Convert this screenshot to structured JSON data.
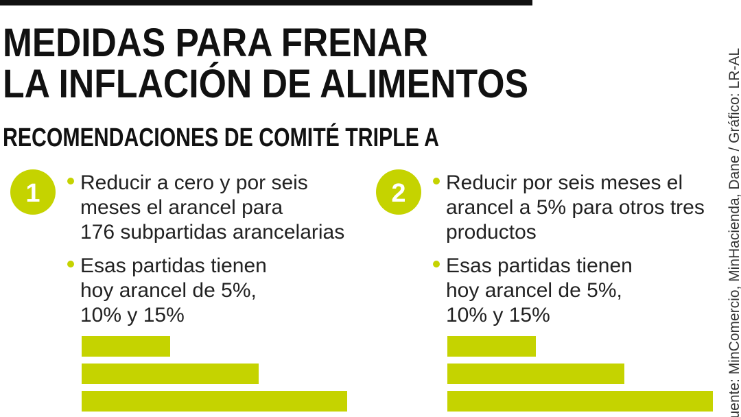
{
  "header": {
    "title_lines": [
      "MEDIDAS PARA FRENAR",
      "LA INFLACIÓN DE ALIMENTOS"
    ],
    "subtitle": "RECOMENDACIONES DE COMITÉ TRIPLE A",
    "source": "Fuente: MinComercio, MinHacienda, Dane / Gráfico: LR-AL"
  },
  "panels": [
    {
      "number": "1",
      "bullets": [
        [
          "Reducir a cero y por seis",
          "meses el arancel para",
          "176 subpartidas arancelarias"
        ],
        [
          "Esas partidas tienen",
          "hoy arancel de 5%,",
          "10% y 15%"
        ]
      ],
      "bars": [
        5,
        10,
        15
      ]
    },
    {
      "number": "2",
      "bullets": [
        [
          "Reducir por seis meses el",
          "arancel a 5% para otros tres",
          "productos"
        ],
        [
          "Esas partidas tienen",
          "hoy arancel de 5%,",
          "10% y 15%"
        ]
      ],
      "bars": [
        5,
        10,
        15
      ]
    }
  ]
}
